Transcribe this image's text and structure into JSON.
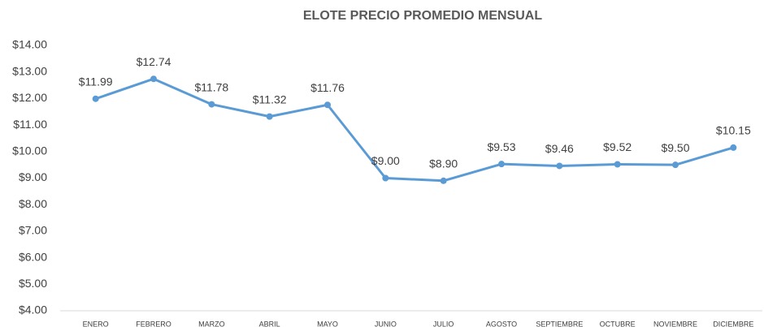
{
  "chart_data": {
    "type": "line",
    "title": "ELOTE PRECIO PROMEDIO MENSUAL",
    "categories": [
      "ENERO",
      "FEBRERO",
      "MARZO",
      "ABRIL",
      "MAYO",
      "JUNIO",
      "JULIO",
      "AGOSTO",
      "SEPTIEMBRE",
      "OCTUBRE",
      "NOVIEMBRE",
      "DICIEMBRE"
    ],
    "values": [
      11.99,
      12.74,
      11.78,
      11.32,
      11.76,
      9.0,
      8.9,
      9.53,
      9.46,
      9.52,
      9.5,
      10.15
    ],
    "value_labels": [
      "$11.99",
      "$12.74",
      "$11.78",
      "$11.32",
      "$11.76",
      "$9.00",
      "$8.90",
      "$9.53",
      "$9.46",
      "$9.52",
      "$9.50",
      "$10.15"
    ],
    "color": "#5b9bd5",
    "ylim": [
      4,
      14
    ],
    "yticks": [
      {
        "value": 4,
        "label": "$4.00"
      },
      {
        "value": 5,
        "label": "$5.00"
      },
      {
        "value": 6,
        "label": "$6.00"
      },
      {
        "value": 7,
        "label": "$7.00"
      },
      {
        "value": 8,
        "label": "$8.00"
      },
      {
        "value": 9,
        "label": "$9.00"
      },
      {
        "value": 10,
        "label": "$10.00"
      },
      {
        "value": 11,
        "label": "$11.00"
      },
      {
        "value": 12,
        "label": "$12.00"
      },
      {
        "value": 13,
        "label": "$13.00"
      },
      {
        "value": 14,
        "label": "$14.00"
      }
    ],
    "grid": false
  }
}
